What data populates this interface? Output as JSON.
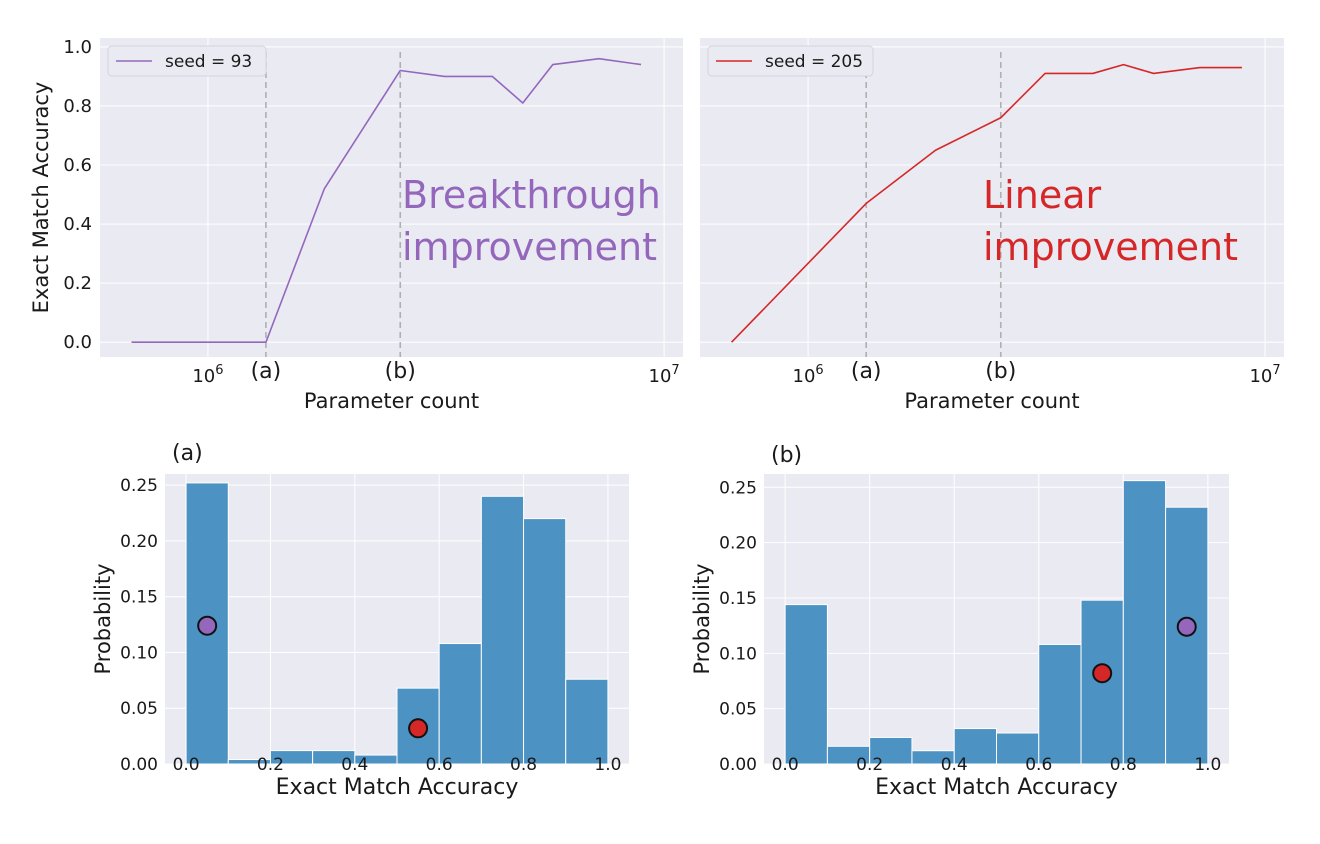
{
  "colors": {
    "plot_bg": "#eaeaf2",
    "grid": "#ffffff",
    "purple": "#9467bd",
    "red": "#d62728",
    "bar": "#4c92c3",
    "vline": "#b0b0b0",
    "text": "#1a1a1a"
  },
  "chart_data": [
    {
      "type": "line",
      "panel": "top-left",
      "xlabel": "Parameter count",
      "ylabel": "Exact Match Accuracy",
      "xscale": "log",
      "xlim": [
        580000,
        11000000
      ],
      "ylim": [
        -0.05,
        1.03
      ],
      "xticks": [
        {
          "value": 1000000,
          "base": "10",
          "exp": "6"
        },
        {
          "value": 10000000,
          "base": "10",
          "exp": "7"
        }
      ],
      "yticks": [
        "0.0",
        "0.2",
        "0.4",
        "0.6",
        "0.8",
        "1.0"
      ],
      "markers": [
        {
          "label": "(a)",
          "x": 1340000
        },
        {
          "label": "(b)",
          "x": 2640000
        }
      ],
      "legend": {
        "position": "upper-left",
        "label": "seed = 93"
      },
      "annotation": {
        "lines": [
          "Breakthrough",
          "improvement"
        ]
      },
      "series": [
        {
          "name": "seed = 93",
          "color": "#9467bd",
          "x": [
            680000,
            1000000,
            1340000,
            1800000,
            2640000,
            3300000,
            4200000,
            4900000,
            5700000,
            7200000,
            8900000
          ],
          "y": [
            0.0,
            0.0,
            0.0,
            0.52,
            0.92,
            0.9,
            0.9,
            0.81,
            0.94,
            0.96,
            0.94
          ]
        }
      ]
    },
    {
      "type": "line",
      "panel": "top-right",
      "xlabel": "Parameter count",
      "ylabel": "",
      "xscale": "log",
      "xlim": [
        580000,
        11000000
      ],
      "ylim": [
        -0.05,
        1.03
      ],
      "xticks": [
        {
          "value": 1000000,
          "base": "10",
          "exp": "6"
        },
        {
          "value": 10000000,
          "base": "10",
          "exp": "7"
        }
      ],
      "yticks": [],
      "markers": [
        {
          "label": "(a)",
          "x": 1340000
        },
        {
          "label": "(b)",
          "x": 2640000
        }
      ],
      "legend": {
        "position": "upper-left",
        "label": "seed = 205"
      },
      "annotation": {
        "lines": [
          "Linear",
          "improvement"
        ]
      },
      "series": [
        {
          "name": "seed = 205",
          "color": "#d62728",
          "x": [
            680000,
            1340000,
            1900000,
            2640000,
            3300000,
            4200000,
            4900000,
            5700000,
            7200000,
            8900000
          ],
          "y": [
            0.0,
            0.47,
            0.65,
            0.76,
            0.91,
            0.91,
            0.94,
            0.91,
            0.93,
            0.93
          ]
        }
      ]
    },
    {
      "type": "bar",
      "panel": "bottom-left",
      "title": "(a)",
      "xlabel": "Exact Match Accuracy",
      "ylabel": "Probability",
      "xlim": [
        -0.05,
        1.05
      ],
      "ylim": [
        0,
        0.26
      ],
      "xticks": [
        "0.0",
        "0.2",
        "0.4",
        "0.6",
        "0.8",
        "1.0"
      ],
      "yticks": [
        "0.00",
        "0.05",
        "0.10",
        "0.15",
        "0.20",
        "0.25"
      ],
      "bin_edges": [
        0.0,
        0.1,
        0.2,
        0.3,
        0.4,
        0.5,
        0.6,
        0.7,
        0.8,
        0.9,
        1.0
      ],
      "values": [
        0.252,
        0.004,
        0.012,
        0.012,
        0.008,
        0.068,
        0.108,
        0.24,
        0.22,
        0.076
      ],
      "points": [
        {
          "x": 0.05,
          "y": 0.124,
          "color": "#9467bd"
        },
        {
          "x": 0.55,
          "y": 0.032,
          "color": "#d62728"
        }
      ]
    },
    {
      "type": "bar",
      "panel": "bottom-right",
      "title": "(b)",
      "xlabel": "Exact Match Accuracy",
      "ylabel": "Probability",
      "xlim": [
        -0.05,
        1.05
      ],
      "ylim": [
        0,
        0.262
      ],
      "xticks": [
        "0.0",
        "0.2",
        "0.4",
        "0.6",
        "0.8",
        "1.0"
      ],
      "yticks": [
        "0.00",
        "0.05",
        "0.10",
        "0.15",
        "0.20",
        "0.25"
      ],
      "bin_edges": [
        0.0,
        0.1,
        0.2,
        0.3,
        0.4,
        0.5,
        0.6,
        0.7,
        0.8,
        0.9,
        1.0
      ],
      "values": [
        0.144,
        0.016,
        0.024,
        0.012,
        0.032,
        0.028,
        0.108,
        0.148,
        0.256,
        0.232
      ],
      "points": [
        {
          "x": 0.75,
          "y": 0.082,
          "color": "#d62728"
        },
        {
          "x": 0.95,
          "y": 0.124,
          "color": "#9467bd"
        }
      ]
    }
  ]
}
